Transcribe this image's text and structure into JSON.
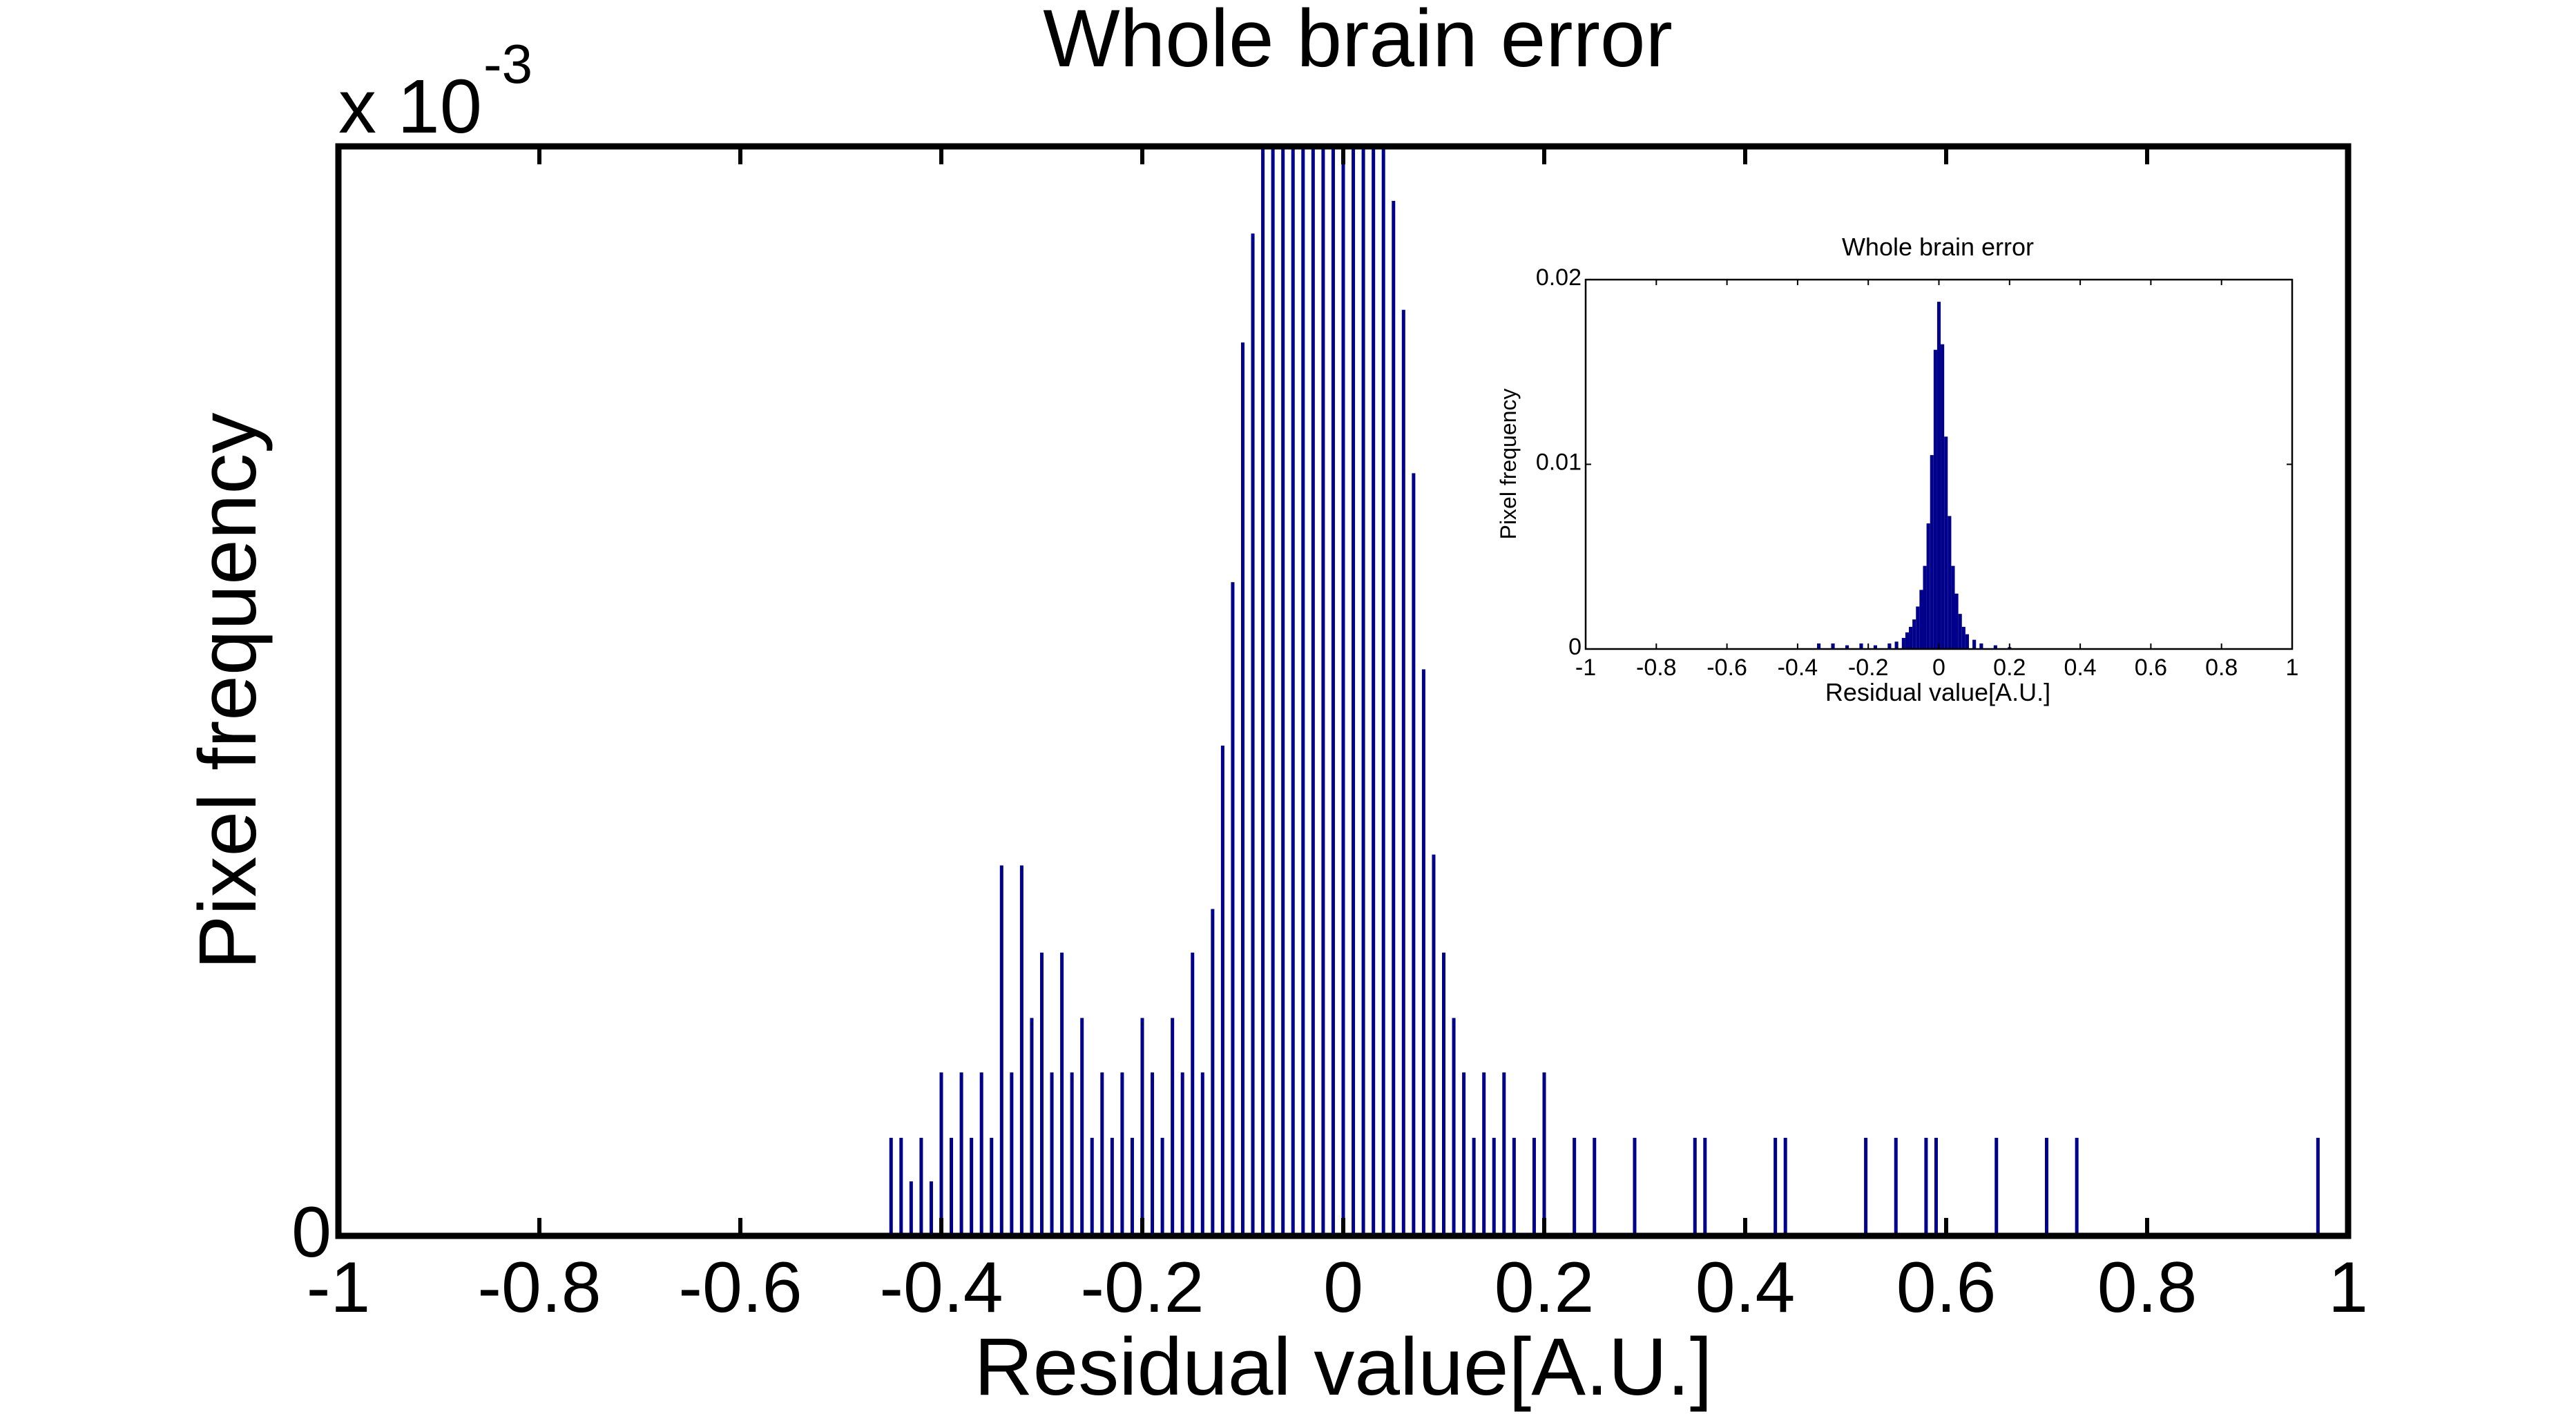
{
  "chart_data": [
    {
      "type": "bar",
      "title": "Whole brain error",
      "xlabel": "Residual value[A.U.]",
      "ylabel": "Pixel frequency",
      "y_exponent_label": {
        "base": "x 10",
        "exponent": "-3"
      },
      "xlim": [
        -1,
        1
      ],
      "ylim": [
        0,
        1
      ],
      "xticks": [
        "-1",
        "-0.8",
        "-0.6",
        "-0.4",
        "-0.2",
        "0",
        "0.2",
        "0.4",
        "0.6",
        "0.8",
        "1"
      ],
      "yticks": [
        "0"
      ],
      "bar_color": "#00008b",
      "bin_width": 0.0025,
      "note_values_unit": "x 10^-3",
      "bars": [
        {
          "x": -0.45,
          "y": 0.09
        },
        {
          "x": -0.44,
          "y": 0.09
        },
        {
          "x": -0.43,
          "y": 0.05
        },
        {
          "x": -0.42,
          "y": 0.09
        },
        {
          "x": -0.41,
          "y": 0.05
        },
        {
          "x": -0.4,
          "y": 0.15
        },
        {
          "x": -0.39,
          "y": 0.09
        },
        {
          "x": -0.38,
          "y": 0.15
        },
        {
          "x": -0.37,
          "y": 0.09
        },
        {
          "x": -0.36,
          "y": 0.15
        },
        {
          "x": -0.35,
          "y": 0.09
        },
        {
          "x": -0.34,
          "y": 0.34
        },
        {
          "x": -0.33,
          "y": 0.15
        },
        {
          "x": -0.32,
          "y": 0.34
        },
        {
          "x": -0.31,
          "y": 0.2
        },
        {
          "x": -0.3,
          "y": 0.26
        },
        {
          "x": -0.29,
          "y": 0.15
        },
        {
          "x": -0.28,
          "y": 0.26
        },
        {
          "x": -0.27,
          "y": 0.15
        },
        {
          "x": -0.26,
          "y": 0.2
        },
        {
          "x": -0.25,
          "y": 0.09
        },
        {
          "x": -0.24,
          "y": 0.15
        },
        {
          "x": -0.23,
          "y": 0.09
        },
        {
          "x": -0.22,
          "y": 0.15
        },
        {
          "x": -0.21,
          "y": 0.09
        },
        {
          "x": -0.2,
          "y": 0.2
        },
        {
          "x": -0.19,
          "y": 0.15
        },
        {
          "x": -0.18,
          "y": 0.09
        },
        {
          "x": -0.17,
          "y": 0.2
        },
        {
          "x": -0.16,
          "y": 0.15
        },
        {
          "x": -0.15,
          "y": 0.26
        },
        {
          "x": -0.14,
          "y": 0.15
        },
        {
          "x": -0.13,
          "y": 0.3
        },
        {
          "x": -0.12,
          "y": 0.45
        },
        {
          "x": -0.11,
          "y": 0.6
        },
        {
          "x": -0.1,
          "y": 0.82
        },
        {
          "x": -0.09,
          "y": 0.92
        },
        {
          "x": -0.08,
          "y": 1.0
        },
        {
          "x": -0.07,
          "y": 1.0
        },
        {
          "x": -0.06,
          "y": 1.0
        },
        {
          "x": -0.05,
          "y": 1.0
        },
        {
          "x": -0.04,
          "y": 1.0
        },
        {
          "x": -0.03,
          "y": 1.0
        },
        {
          "x": -0.02,
          "y": 1.0
        },
        {
          "x": -0.01,
          "y": 1.0
        },
        {
          "x": 0.0,
          "y": 1.0
        },
        {
          "x": 0.01,
          "y": 1.0
        },
        {
          "x": 0.02,
          "y": 1.0
        },
        {
          "x": 0.03,
          "y": 1.0
        },
        {
          "x": 0.04,
          "y": 1.0
        },
        {
          "x": 0.05,
          "y": 0.95
        },
        {
          "x": 0.06,
          "y": 0.85
        },
        {
          "x": 0.07,
          "y": 0.7
        },
        {
          "x": 0.08,
          "y": 0.52
        },
        {
          "x": 0.09,
          "y": 0.35
        },
        {
          "x": 0.1,
          "y": 0.26
        },
        {
          "x": 0.11,
          "y": 0.2
        },
        {
          "x": 0.12,
          "y": 0.15
        },
        {
          "x": 0.13,
          "y": 0.09
        },
        {
          "x": 0.14,
          "y": 0.15
        },
        {
          "x": 0.15,
          "y": 0.09
        },
        {
          "x": 0.16,
          "y": 0.15
        },
        {
          "x": 0.17,
          "y": 0.09
        },
        {
          "x": 0.19,
          "y": 0.09
        },
        {
          "x": 0.2,
          "y": 0.15
        },
        {
          "x": 0.23,
          "y": 0.09
        },
        {
          "x": 0.25,
          "y": 0.09
        },
        {
          "x": 0.29,
          "y": 0.09
        },
        {
          "x": 0.35,
          "y": 0.09
        },
        {
          "x": 0.36,
          "y": 0.09
        },
        {
          "x": 0.43,
          "y": 0.09
        },
        {
          "x": 0.44,
          "y": 0.09
        },
        {
          "x": 0.52,
          "y": 0.09
        },
        {
          "x": 0.55,
          "y": 0.09
        },
        {
          "x": 0.58,
          "y": 0.09
        },
        {
          "x": 0.59,
          "y": 0.09
        },
        {
          "x": 0.65,
          "y": 0.09
        },
        {
          "x": 0.7,
          "y": 0.09
        },
        {
          "x": 0.73,
          "y": 0.09
        },
        {
          "x": 0.97,
          "y": 0.09
        }
      ]
    },
    {
      "type": "bar",
      "title": "Whole brain error",
      "xlabel": "Residual value[A.U.]",
      "ylabel": "Pixel frequency",
      "xlim": [
        -1,
        1
      ],
      "ylim": [
        0,
        0.02
      ],
      "xticks": [
        "-1",
        "-0.8",
        "-0.6",
        "-0.4",
        "-0.2",
        "0",
        "0.2",
        "0.4",
        "0.6",
        "0.8",
        "1"
      ],
      "yticks": [
        "0",
        "0.01",
        "0.02"
      ],
      "bar_color": "#00008b",
      "bars": [
        {
          "x": -0.34,
          "y": 0.0003
        },
        {
          "x": -0.3,
          "y": 0.0003
        },
        {
          "x": -0.26,
          "y": 0.0002
        },
        {
          "x": -0.22,
          "y": 0.0003
        },
        {
          "x": -0.18,
          "y": 0.0002
        },
        {
          "x": -0.14,
          "y": 0.0003
        },
        {
          "x": -0.12,
          "y": 0.0004
        },
        {
          "x": -0.1,
          "y": 0.0006
        },
        {
          "x": -0.09,
          "y": 0.0009
        },
        {
          "x": -0.08,
          "y": 0.0012
        },
        {
          "x": -0.07,
          "y": 0.0016
        },
        {
          "x": -0.06,
          "y": 0.0023
        },
        {
          "x": -0.05,
          "y": 0.0032
        },
        {
          "x": -0.04,
          "y": 0.0045
        },
        {
          "x": -0.03,
          "y": 0.0068
        },
        {
          "x": -0.02,
          "y": 0.0105
        },
        {
          "x": -0.01,
          "y": 0.0162
        },
        {
          "x": 0.0,
          "y": 0.0188
        },
        {
          "x": 0.01,
          "y": 0.0165
        },
        {
          "x": 0.02,
          "y": 0.0115
        },
        {
          "x": 0.03,
          "y": 0.0072
        },
        {
          "x": 0.04,
          "y": 0.0045
        },
        {
          "x": 0.05,
          "y": 0.003
        },
        {
          "x": 0.06,
          "y": 0.0019
        },
        {
          "x": 0.07,
          "y": 0.0012
        },
        {
          "x": 0.08,
          "y": 0.0008
        },
        {
          "x": 0.1,
          "y": 0.0005
        },
        {
          "x": 0.12,
          "y": 0.0003
        },
        {
          "x": 0.16,
          "y": 0.0002
        },
        {
          "x": 0.2,
          "y": 0.0001
        }
      ]
    }
  ]
}
